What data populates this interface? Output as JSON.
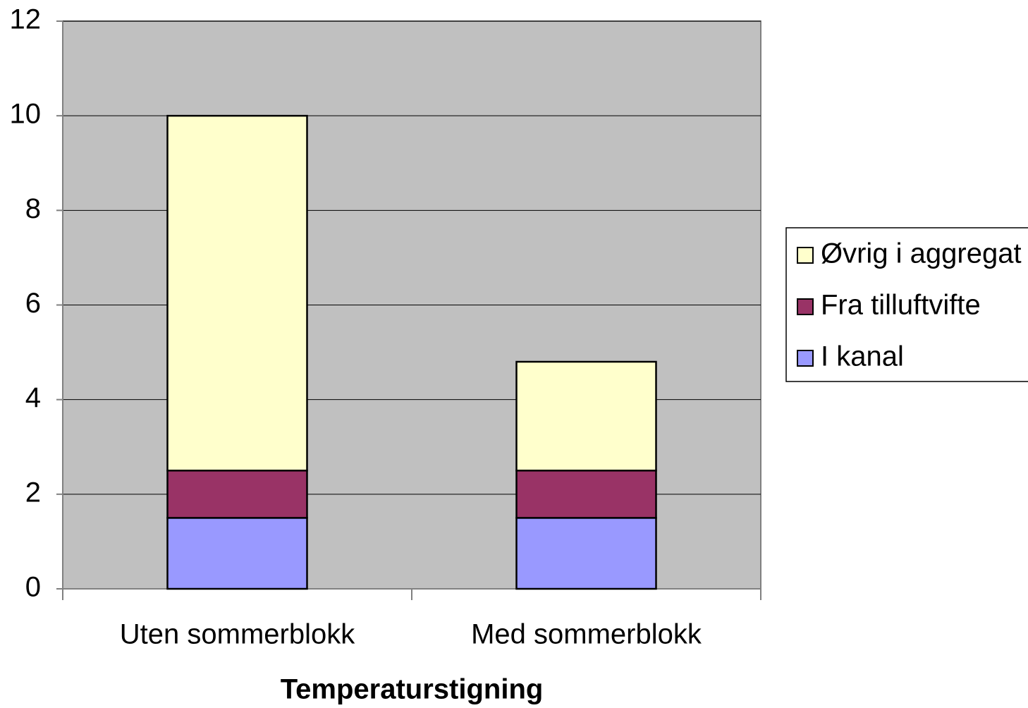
{
  "chart_data": {
    "type": "stacked_bar",
    "x_label": "Temperaturstigning",
    "categories": [
      "Uten sommerblokk",
      "Med sommerblokk"
    ],
    "series": [
      {
        "name": "I kanal",
        "color": "#9999ff",
        "values": [
          1.5,
          1.5
        ]
      },
      {
        "name": "Fra tilluftvifte",
        "color": "#993366",
        "values": [
          1.0,
          1.0
        ]
      },
      {
        "name": "Øvrig i aggregat",
        "color": "#ffffcc",
        "values": [
          7.5,
          2.3
        ]
      }
    ],
    "ylim": [
      0,
      12
    ],
    "yticks": [
      0,
      2,
      4,
      6,
      8,
      10,
      12
    ],
    "grid": true,
    "legend": "right"
  }
}
